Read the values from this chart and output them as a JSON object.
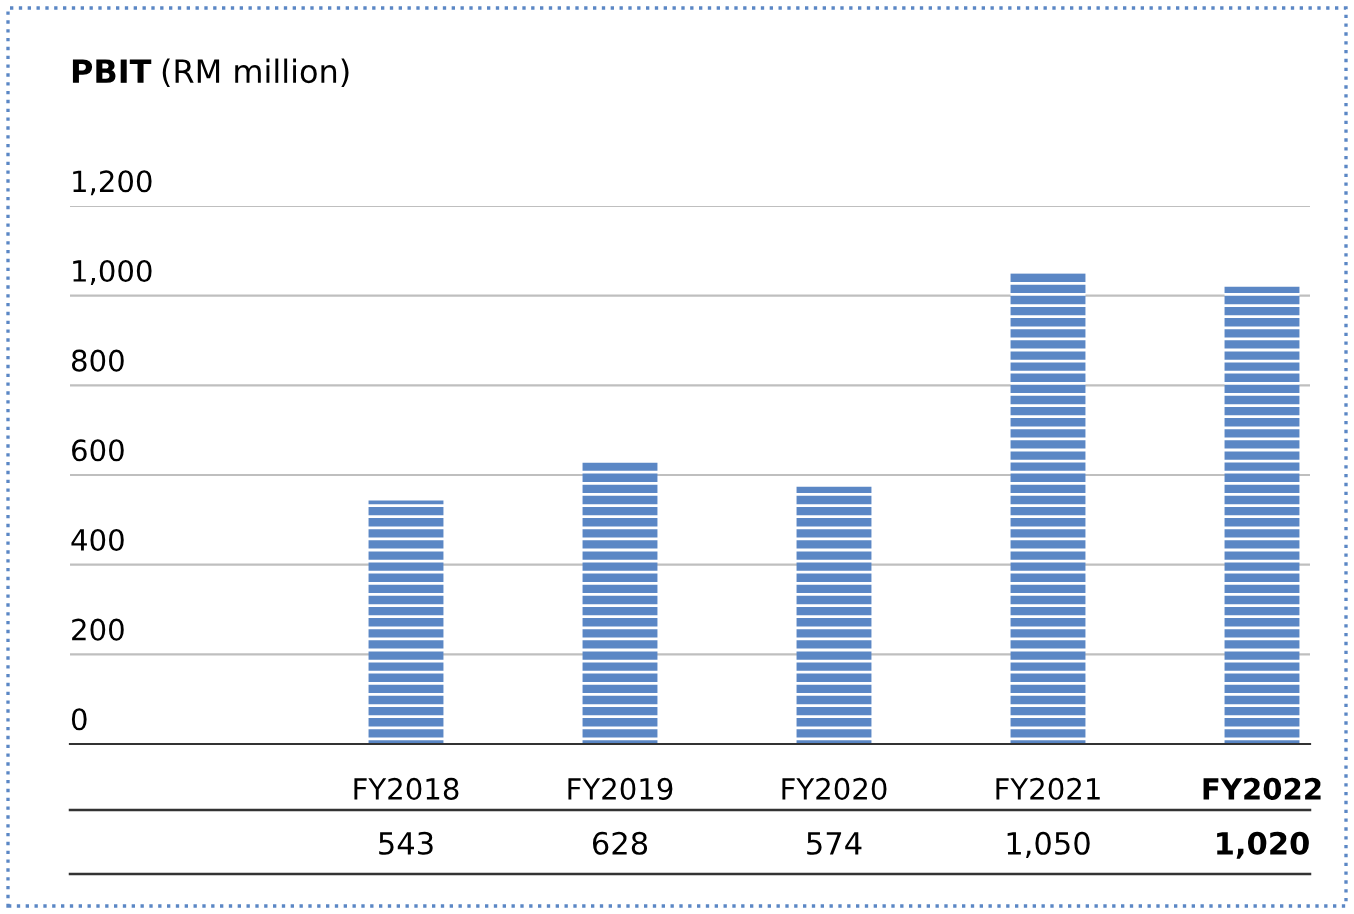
{
  "chart_data": {
    "type": "bar",
    "title": "PBIT",
    "subtitle": "(RM million)",
    "categories": [
      "FY2018",
      "FY2019",
      "FY2020",
      "FY2021",
      "FY2022"
    ],
    "values": [
      543,
      628,
      574,
      1050,
      1020
    ],
    "value_labels": [
      "543",
      "628",
      "574",
      "1,050",
      "1,020"
    ],
    "color": "#5b87c5",
    "ylim": [
      0,
      1200
    ],
    "yticks": [
      0,
      200,
      400,
      600,
      800,
      {
        "value": 1000,
        "label": "1,000"
      },
      {
        "value": 1200,
        "label": "1,200"
      }
    ],
    "grid": "y"
  }
}
